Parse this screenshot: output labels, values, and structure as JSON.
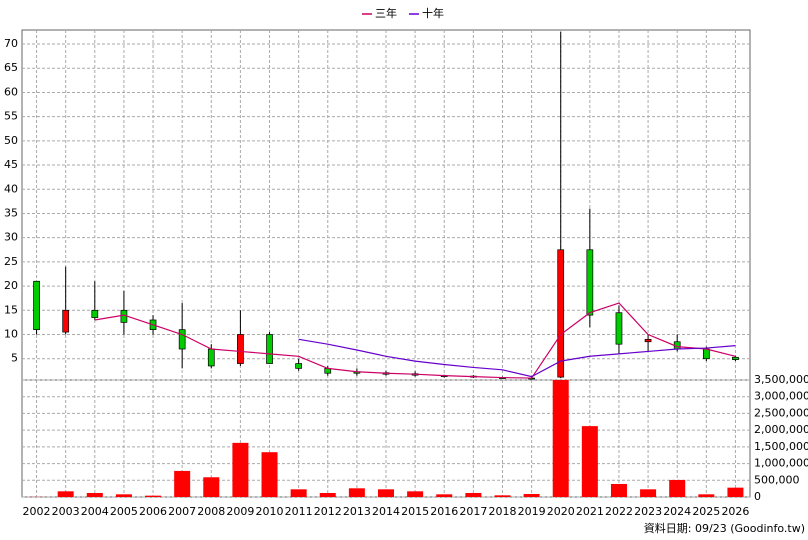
{
  "chart_data": [
    {
      "type": "candlestick",
      "categories": [
        "2002",
        "2003",
        "2004",
        "2005",
        "2006",
        "2007",
        "2008",
        "2009",
        "2010",
        "2011",
        "2012",
        "2013",
        "2014",
        "2015",
        "2016",
        "2017",
        "2018",
        "2019",
        "2020",
        "2021",
        "2022",
        "2023",
        "2024",
        "2025",
        "2026"
      ],
      "open": [
        21,
        10.5,
        15,
        15,
        13,
        11,
        7,
        4,
        10,
        4,
        3,
        2.3,
        2.1,
        1.9,
        1.5,
        1.4,
        1.1,
        1.0,
        1.2,
        27.5,
        14.5,
        8.5,
        8.5,
        7,
        5.3
      ],
      "high": [
        21,
        24,
        21,
        19,
        14,
        16.5,
        8,
        15,
        10.5,
        5,
        3.5,
        3,
        2.5,
        2.4,
        1.7,
        1.6,
        1.3,
        1.2,
        72.5,
        36,
        16,
        10,
        10,
        7.5,
        5.6
      ],
      "low": [
        10,
        10,
        13,
        10,
        10,
        3,
        3,
        3.5,
        4,
        2.5,
        1.5,
        1.5,
        1.5,
        1.3,
        1.1,
        1.0,
        0.9,
        0.8,
        1,
        11.5,
        6,
        6.5,
        6.5,
        4.5,
        4.5
      ],
      "close": [
        11,
        15,
        13.5,
        12.5,
        11,
        7,
        3.5,
        10,
        4,
        3,
        2,
        2.0,
        1.8,
        1.6,
        1.3,
        1.2,
        1.0,
        0.9,
        27.5,
        14,
        8,
        9,
        7,
        5,
        4.8
      ],
      "up_color": "#ff0000",
      "down_color": "#00cc00",
      "series": [
        {
          "name": "三年",
          "color": "#cc0066",
          "values": [
            null,
            null,
            13,
            14,
            12,
            10,
            7,
            6.5,
            6,
            5.5,
            3,
            2.3,
            2.0,
            1.8,
            1.5,
            1.3,
            1.1,
            1.0,
            10,
            14.5,
            16.5,
            10,
            7.5,
            7,
            5.5
          ]
        },
        {
          "name": "十年",
          "color": "#6600cc",
          "values": [
            null,
            null,
            null,
            null,
            null,
            null,
            null,
            null,
            null,
            9,
            8,
            6.8,
            5.5,
            4.5,
            3.8,
            3.2,
            2.7,
            1.3,
            4.5,
            5.5,
            6,
            6.5,
            7,
            7.2,
            7.7
          ]
        }
      ],
      "ylim": [
        0.6,
        72.9
      ],
      "yticks": [
        5,
        10,
        15,
        20,
        25,
        30,
        35,
        40,
        45,
        50,
        55,
        60,
        65,
        70
      ],
      "grid": true,
      "legend": "top"
    },
    {
      "type": "bar",
      "color": "#ff0000",
      "values": [
        5000,
        170000,
        120000,
        80000,
        40000,
        780000,
        590000,
        1620000,
        1340000,
        230000,
        120000,
        260000,
        230000,
        170000,
        80000,
        120000,
        50000,
        90000,
        3500000,
        2120000,
        390000,
        230000,
        510000,
        80000,
        280000
      ],
      "ylim": [
        0,
        3500000
      ],
      "yticks": [
        0,
        {
          "value": 500000,
          "label": "500,000"
        },
        {
          "value": 1000000,
          "label": "1,000,000"
        },
        {
          "value": 1500000,
          "label": "1,500,000"
        },
        {
          "value": 2000000,
          "label": "2,000,000"
        },
        {
          "value": 2500000,
          "label": "2,500,000"
        },
        {
          "value": 3000000,
          "label": "3,000,000"
        },
        {
          "value": 3500000,
          "label": "3,500,000"
        }
      ],
      "source": "資料日期: 09/23  (Goodinfo.tw)"
    }
  ]
}
